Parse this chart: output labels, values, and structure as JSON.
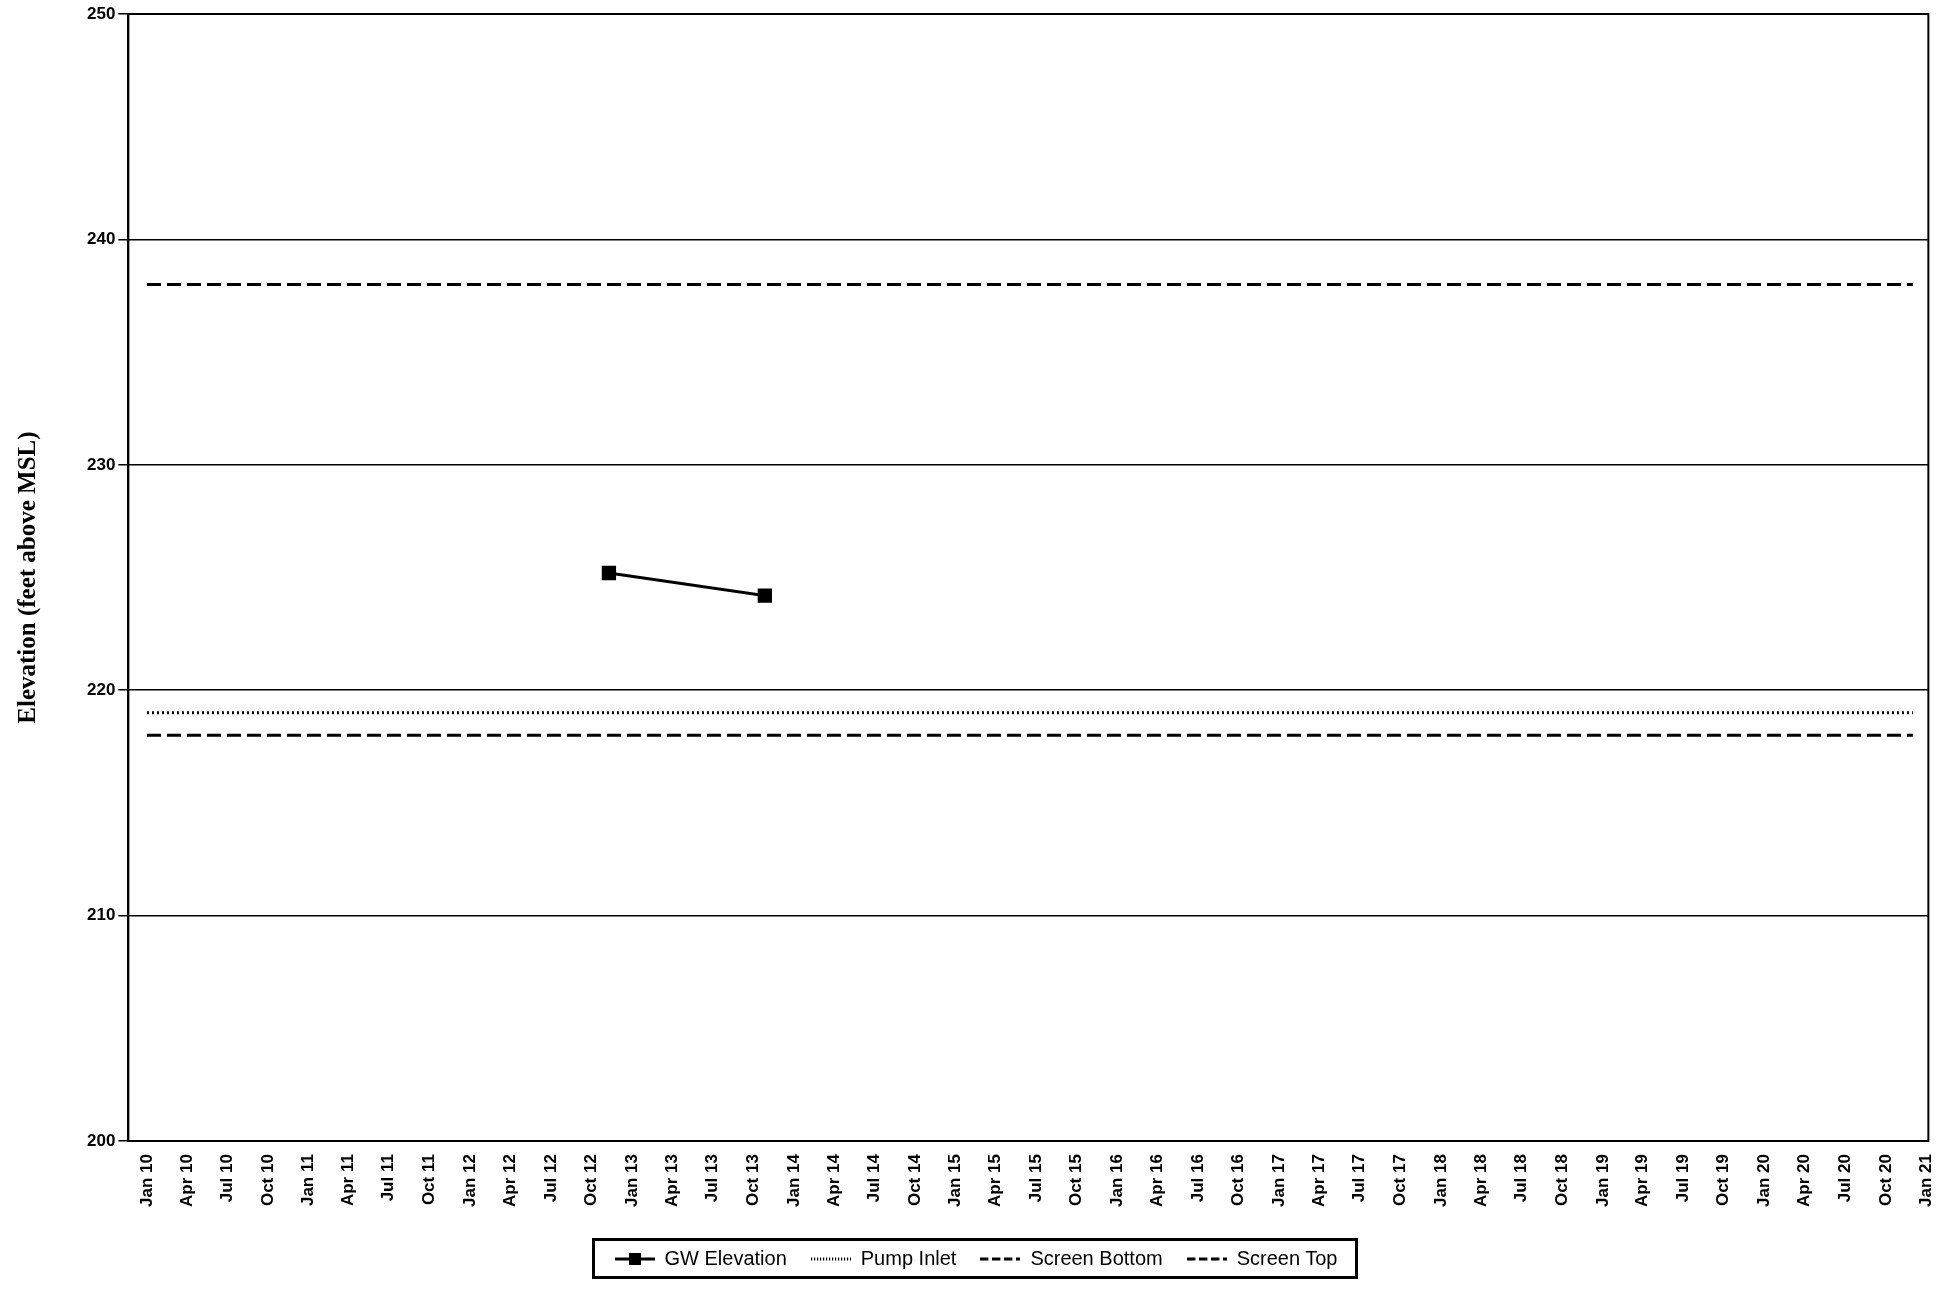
{
  "chart_data": {
    "type": "line",
    "ylabel": "Elevation (feet above MSL)",
    "xlim": [
      "2009-11-20",
      "2021-01-05"
    ],
    "xticks": [
      {
        "value": "2010-01",
        "label": "Jan 10"
      },
      {
        "value": "2010-04",
        "label": "Apr 10"
      },
      {
        "value": "2010-07",
        "label": "Jul 10"
      },
      {
        "value": "2010-10",
        "label": "Oct 10"
      },
      {
        "value": "2011-01",
        "label": "Jan 11"
      },
      {
        "value": "2011-04",
        "label": "Apr 11"
      },
      {
        "value": "2011-07",
        "label": "Jul 11"
      },
      {
        "value": "2011-10",
        "label": "Oct 11"
      },
      {
        "value": "2012-01",
        "label": "Jan 12"
      },
      {
        "value": "2012-04",
        "label": "Apr 12"
      },
      {
        "value": "2012-07",
        "label": "Jul 12"
      },
      {
        "value": "2012-10",
        "label": "Oct 12"
      },
      {
        "value": "2013-01",
        "label": "Jan 13"
      },
      {
        "value": "2013-04",
        "label": "Apr 13"
      },
      {
        "value": "2013-07",
        "label": "Jul 13"
      },
      {
        "value": "2013-10",
        "label": "Oct 13"
      },
      {
        "value": "2014-01",
        "label": "Jan 14"
      },
      {
        "value": "2014-04",
        "label": "Apr 14"
      },
      {
        "value": "2014-07",
        "label": "Jul 14"
      },
      {
        "value": "2014-10",
        "label": "Oct 14"
      },
      {
        "value": "2015-01",
        "label": "Jan 15"
      },
      {
        "value": "2015-04",
        "label": "Apr 15"
      },
      {
        "value": "2015-07",
        "label": "Jul 15"
      },
      {
        "value": "2015-10",
        "label": "Oct 15"
      },
      {
        "value": "2016-01",
        "label": "Jan 16"
      },
      {
        "value": "2016-04",
        "label": "Apr 16"
      },
      {
        "value": "2016-07",
        "label": "Jul 16"
      },
      {
        "value": "2016-10",
        "label": "Oct 16"
      },
      {
        "value": "2017-01",
        "label": "Jan 17"
      },
      {
        "value": "2017-04",
        "label": "Apr 17"
      },
      {
        "value": "2017-07",
        "label": "Jul 17"
      },
      {
        "value": "2017-10",
        "label": "Oct 17"
      },
      {
        "value": "2018-01",
        "label": "Jan 18"
      },
      {
        "value": "2018-04",
        "label": "Apr 18"
      },
      {
        "value": "2018-07",
        "label": "Jul 18"
      },
      {
        "value": "2018-10",
        "label": "Oct 18"
      },
      {
        "value": "2019-01",
        "label": "Jan 19"
      },
      {
        "value": "2019-04",
        "label": "Apr 19"
      },
      {
        "value": "2019-07",
        "label": "Jul 19"
      },
      {
        "value": "2019-10",
        "label": "Oct 19"
      },
      {
        "value": "2020-01",
        "label": "Jan 20"
      },
      {
        "value": "2020-04",
        "label": "Apr 20"
      },
      {
        "value": "2020-07",
        "label": "Jul 20"
      },
      {
        "value": "2020-10",
        "label": "Oct 20"
      },
      {
        "value": "2021-01",
        "label": "Jan 21"
      }
    ],
    "ylim": [
      200,
      250
    ],
    "yticks": [
      200,
      210,
      220,
      230,
      240,
      250
    ],
    "grid": "y",
    "legend": "bottom",
    "series": [
      {
        "name": "GW Elevation",
        "color": "#000000",
        "x": [
          "2012-11-09",
          "2013-10-27"
        ],
        "values": [
          225.2,
          224.2
        ],
        "marker": "square",
        "line_style": "solid"
      },
      {
        "name": "Pump Inlet",
        "color": "#000000",
        "x": [
          "2010-01",
          "2020-12"
        ],
        "values": [
          219,
          219
        ],
        "marker": "none",
        "line_style": "dotted"
      },
      {
        "name": "Screen Bottom",
        "color": "#000000",
        "x": [
          "2010-01",
          "2020-12"
        ],
        "values": [
          218,
          218
        ],
        "marker": "none",
        "line_style": "dashed"
      },
      {
        "name": "Screen Top",
        "color": "#000000",
        "x": [
          "2010-01",
          "2020-12"
        ],
        "values": [
          238,
          238
        ],
        "marker": "none",
        "line_style": "dashed"
      }
    ]
  }
}
